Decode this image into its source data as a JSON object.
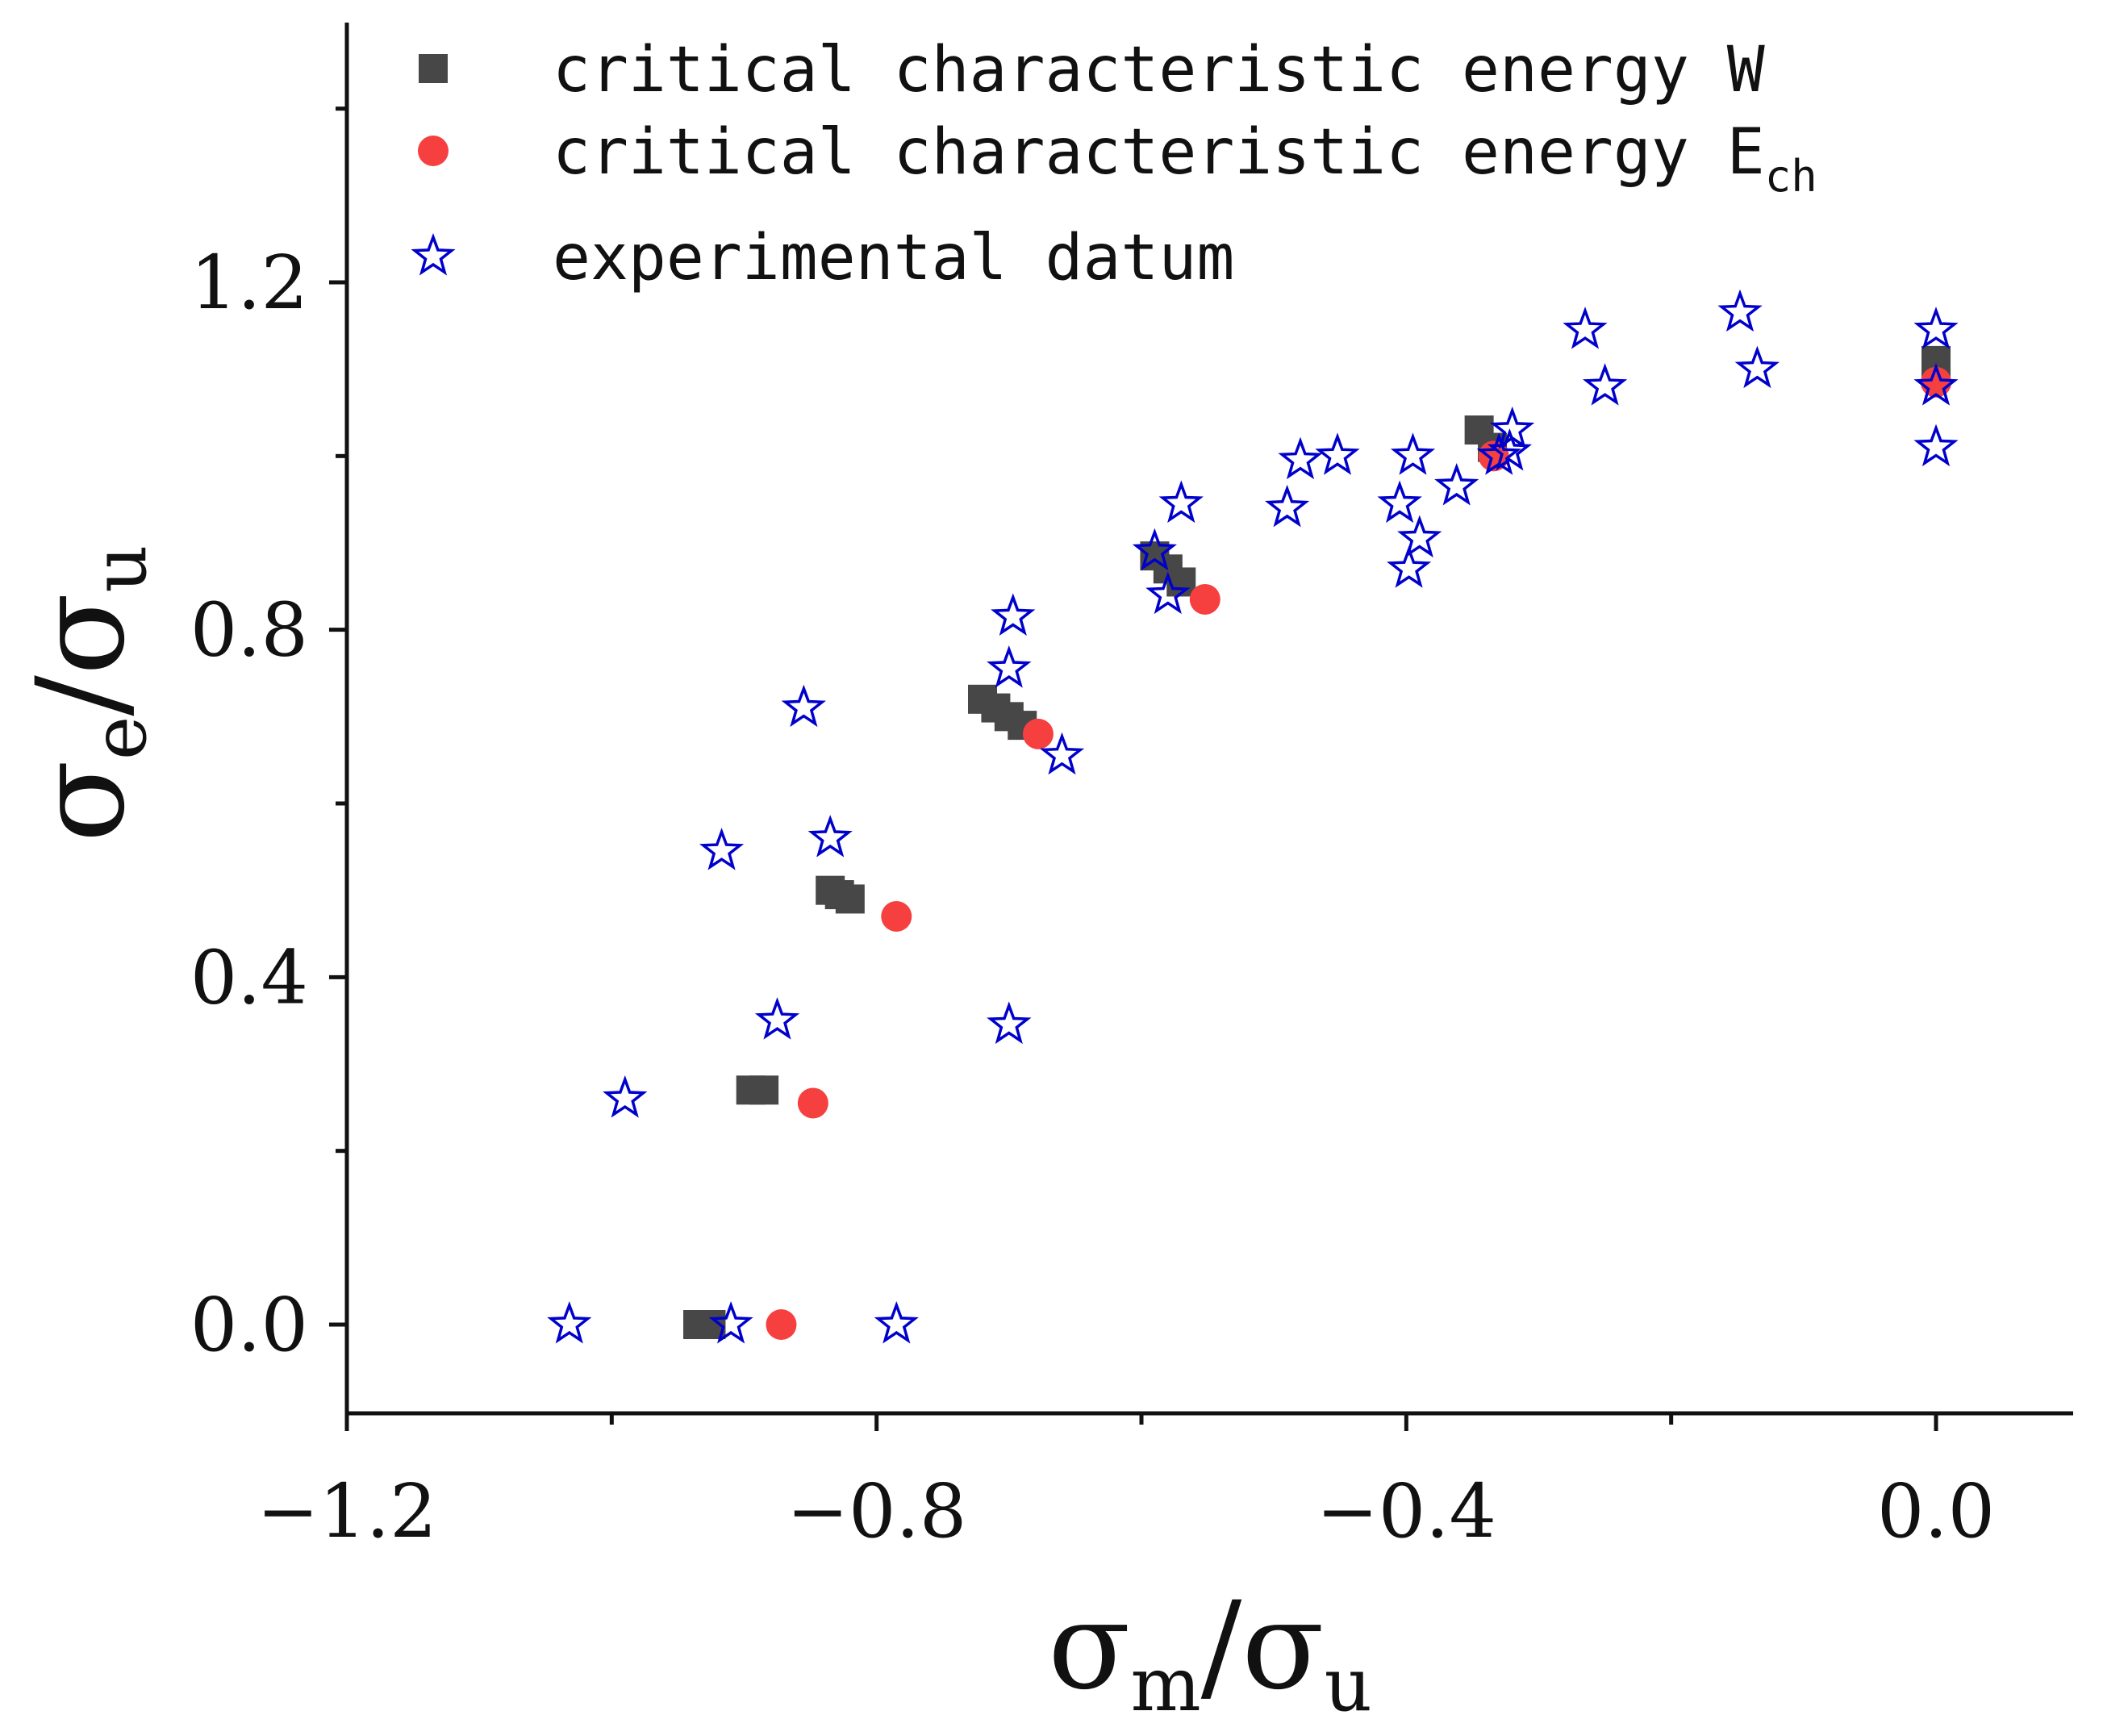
{
  "chart_data": {
    "type": "scatter",
    "xlabel": {
      "base": "σ",
      "sub": "m",
      "slash": "/",
      "base2": "σ",
      "sub2": "u"
    },
    "ylabel": {
      "base": "σ",
      "sub": "e",
      "slash": "/",
      "base2": "σ",
      "sub2": "u"
    },
    "xlim": [
      -1.2,
      0.1
    ],
    "ylim": [
      -0.1,
      1.5
    ],
    "xticks": [
      -1.2,
      -0.8,
      -0.4,
      0.0
    ],
    "xtick_labels": [
      "−1.2",
      "−0.8",
      "−0.4",
      "0.0"
    ],
    "yticks": [
      0.0,
      0.4,
      0.8,
      1.2
    ],
    "ytick_labels": [
      "0.0",
      "0.4",
      "0.8",
      "1.2"
    ],
    "grid": false,
    "legend_position": "top-left",
    "series": [
      {
        "name": "critical characteristic energy W",
        "legend_text": "critical characteristic energy W",
        "legend_sub": "",
        "marker": "square",
        "color": "#474747",
        "points": [
          [
            -0.935,
            0.0
          ],
          [
            -0.925,
            0.0
          ],
          [
            -0.895,
            0.27
          ],
          [
            -0.885,
            0.27
          ],
          [
            -0.835,
            0.5
          ],
          [
            -0.828,
            0.495
          ],
          [
            -0.82,
            0.49
          ],
          [
            -0.72,
            0.72
          ],
          [
            -0.71,
            0.71
          ],
          [
            -0.7,
            0.7
          ],
          [
            -0.69,
            0.69
          ],
          [
            -0.59,
            0.885
          ],
          [
            -0.58,
            0.87
          ],
          [
            -0.57,
            0.855
          ],
          [
            -0.345,
            1.03
          ],
          [
            -0.335,
            1.01
          ],
          [
            0.0,
            1.11
          ],
          [
            0.0,
            1.095
          ]
        ]
      },
      {
        "name": "critical characteristic energy E_ch",
        "legend_text": "critical characteristic energy E",
        "legend_sub": "ch",
        "marker": "circle",
        "color": "#f64040",
        "points": [
          [
            -0.872,
            0.0
          ],
          [
            -0.848,
            0.255
          ],
          [
            -0.785,
            0.47
          ],
          [
            -0.678,
            0.68
          ],
          [
            -0.552,
            0.835
          ],
          [
            -0.334,
            1.0
          ],
          [
            0.0,
            1.085
          ]
        ]
      },
      {
        "name": "experimental datum",
        "legend_text": "experimental datum",
        "legend_sub": "",
        "marker": "star",
        "color": "#0000cc",
        "points": [
          [
            -1.032,
            0.0
          ],
          [
            -0.91,
            0.0
          ],
          [
            -0.785,
            0.0
          ],
          [
            -0.99,
            0.26
          ],
          [
            -0.875,
            0.35
          ],
          [
            -0.7,
            0.345
          ],
          [
            -0.917,
            0.545
          ],
          [
            -0.835,
            0.56
          ],
          [
            -0.855,
            0.71
          ],
          [
            -0.7,
            0.755
          ],
          [
            -0.697,
            0.815
          ],
          [
            -0.66,
            0.655
          ],
          [
            -0.59,
            0.89
          ],
          [
            -0.58,
            0.84
          ],
          [
            -0.57,
            0.945
          ],
          [
            -0.49,
            0.94
          ],
          [
            -0.48,
            0.995
          ],
          [
            -0.452,
            1.0
          ],
          [
            -0.405,
            0.945
          ],
          [
            -0.398,
            0.87
          ],
          [
            -0.395,
            1.0
          ],
          [
            -0.39,
            0.905
          ],
          [
            -0.362,
            0.965
          ],
          [
            -0.33,
            1.0
          ],
          [
            -0.322,
            1.005
          ],
          [
            -0.32,
            1.03
          ],
          [
            -0.265,
            1.145
          ],
          [
            -0.25,
            1.08
          ],
          [
            -0.148,
            1.165
          ],
          [
            -0.135,
            1.1
          ],
          [
            0.0,
            1.145
          ],
          [
            0.0,
            1.08
          ],
          [
            0.0,
            1.01
          ]
        ]
      }
    ]
  }
}
